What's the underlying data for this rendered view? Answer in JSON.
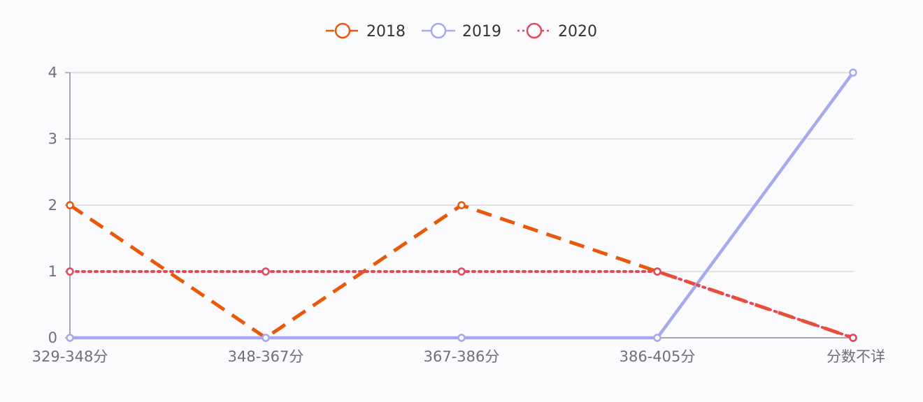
{
  "chart_data": {
    "type": "line",
    "categories": [
      "329-348分",
      "348-367分",
      "367-386分",
      "386-405分",
      "分数不详"
    ],
    "series": [
      {
        "name": "2018",
        "values": [
          2,
          0,
          2,
          1,
          0
        ],
        "color": "#e8590c",
        "line_style": "dashed"
      },
      {
        "name": "2019",
        "values": [
          0,
          0,
          0,
          0,
          4
        ],
        "color": "#a5aaee",
        "line_style": "solid"
      },
      {
        "name": "2020",
        "values": [
          1,
          1,
          1,
          1,
          0
        ],
        "color": "#e5485a",
        "line_style": "dotted"
      }
    ],
    "ylim": [
      0,
      4
    ],
    "yticks": [
      0,
      1,
      2,
      3,
      4
    ],
    "grid": true,
    "legend_position": "top-center"
  }
}
